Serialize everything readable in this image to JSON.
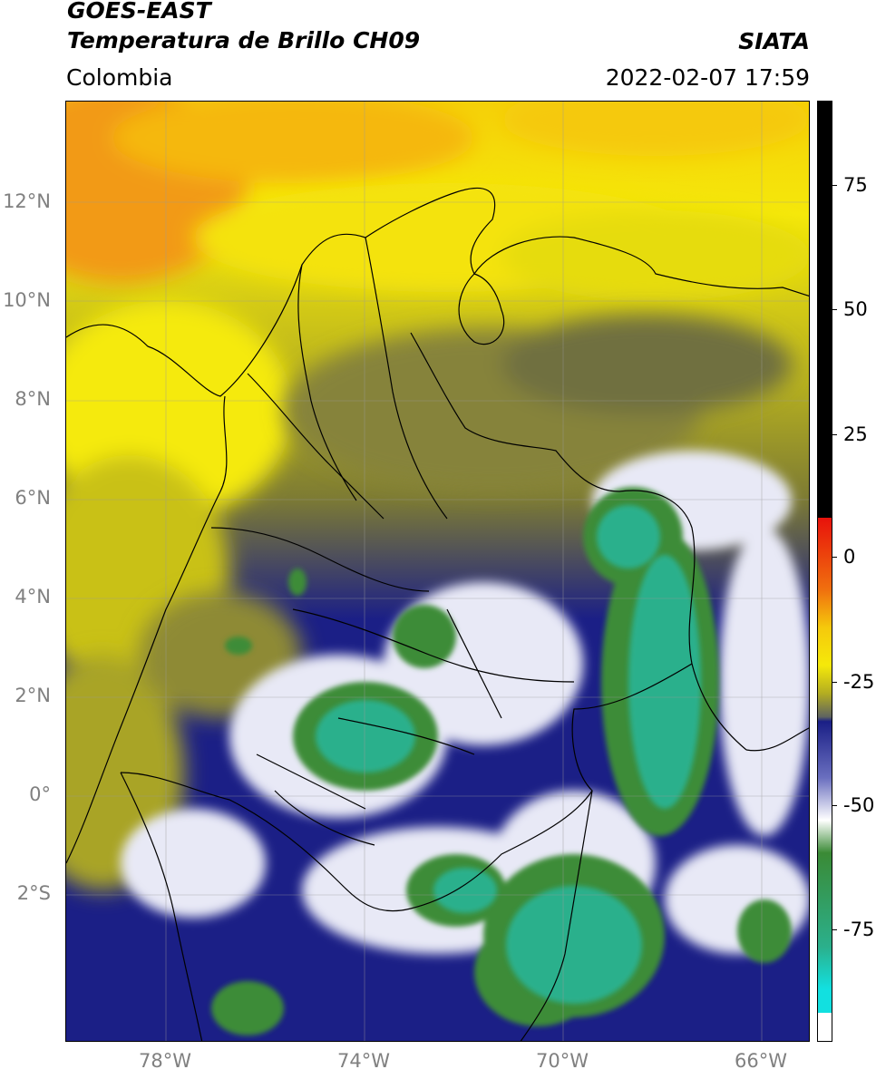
{
  "header": {
    "satellite": "GOES-EAST",
    "product": "Temperatura de Brillo CH09",
    "region": "Colombia",
    "organization": "SIATA",
    "datetime": "2022-02-07 17:59"
  },
  "map": {
    "lat_ticks": [
      "12°N",
      "10°N",
      "8°N",
      "6°N",
      "4°N",
      "2°N",
      "0°",
      "2°S"
    ],
    "lon_ticks": [
      "78°W",
      "74°W",
      "70°W",
      "66°W"
    ]
  },
  "colorbar": {
    "tick_labels": [
      "75",
      "50",
      "25",
      "0",
      "-25",
      "-50",
      "-75"
    ],
    "colors": {
      "black": "#000000",
      "red": "#e8120b",
      "orange": "#f29a13",
      "yellow": "#f5e90a",
      "olive": "#b3ad21",
      "gray": "#5f6460",
      "navy": "#1a1f86",
      "white": "#ffffff",
      "green": "#3a8a35",
      "teal": "#2bb08c",
      "cyan": "#12e0e0"
    }
  }
}
